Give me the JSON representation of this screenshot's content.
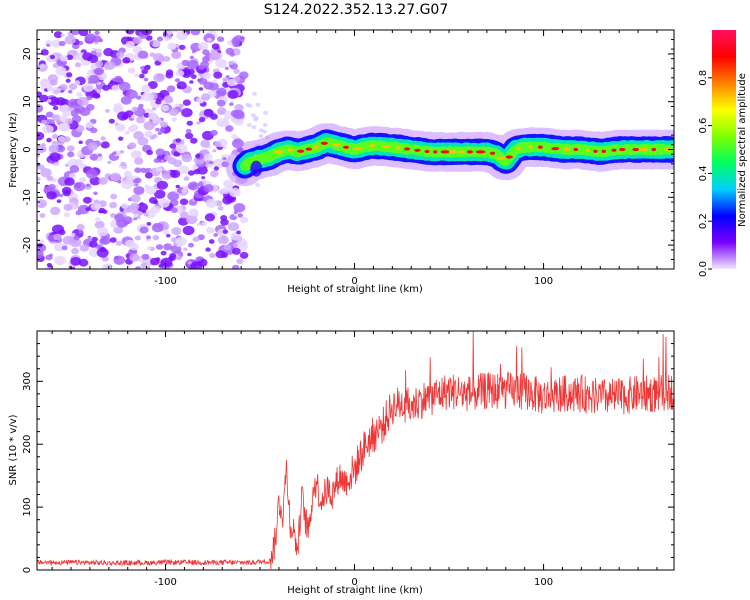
{
  "title": "S124.2022.352.13.27.G07",
  "chart_data": [
    {
      "type": "heatmap",
      "xlabel": "Height of straight line (km)",
      "ylabel": "Frequency (Hz)",
      "xlim": [
        -168,
        169
      ],
      "ylim": [
        -25,
        25
      ],
      "xticks": [
        -100,
        0,
        100
      ],
      "yticks": [
        -20,
        -10,
        0,
        10,
        20
      ],
      "colorbar": {
        "label": "Normalized spectral amplitude",
        "range": [
          0,
          1
        ],
        "ticks": [
          0.0,
          0.2,
          0.4,
          0.6,
          0.8
        ],
        "colormap": [
          "#f0e8ff",
          "#7a00ff",
          "#0000ff",
          "#00d0ff",
          "#00ff60",
          "#80ff00",
          "#ffff00",
          "#ff8000",
          "#ff0000",
          "#ff1060"
        ]
      },
      "noise_region": {
        "x": [
          -168,
          -58
        ],
        "level": 0.1
      },
      "signal_ridge": {
        "x": [
          -58,
          -55,
          -50,
          -45,
          -40,
          -35,
          -30,
          -25,
          -20,
          -15,
          -10,
          -5,
          0,
          5,
          10,
          20,
          30,
          40,
          50,
          60,
          70,
          75,
          80,
          85,
          90,
          100,
          110,
          120,
          130,
          140,
          150,
          160,
          169
        ],
        "y": [
          -3.5,
          -2.5,
          -2,
          -1.5,
          -0.5,
          0,
          -0.5,
          0,
          0.5,
          1.5,
          1,
          0.5,
          0,
          0.5,
          0.8,
          0.5,
          0,
          -0.5,
          -0.5,
          -0.5,
          -0.5,
          -1,
          -2.5,
          0,
          0.5,
          0.5,
          0,
          0,
          -0.5,
          0,
          0,
          0,
          0
        ]
      }
    },
    {
      "type": "line",
      "xlabel": "Height of straight line (km)",
      "ylabel": "SNR (10 * v/v)",
      "xlim": [
        -168,
        169
      ],
      "ylim": [
        0,
        380
      ],
      "xticks": [
        -100,
        0,
        100
      ],
      "yticks": [
        0,
        100,
        200,
        300
      ],
      "color": "#ee2a2a",
      "series": [
        {
          "x": [
            -168,
            -150,
            -125,
            -100,
            -75,
            -55,
            -45,
            -42,
            -40,
            -38,
            -36,
            -34,
            -32,
            -30,
            -28,
            -26,
            -24,
            -22,
            -20,
            -18,
            -16,
            -14,
            -12,
            -10,
            -8,
            -5,
            -2,
            0,
            3,
            6,
            10,
            15,
            20,
            25,
            30,
            35,
            40,
            50,
            60,
            70,
            80,
            90,
            100,
            110,
            120,
            130,
            140,
            150,
            160,
            169
          ],
          "y": [
            12,
            12,
            11,
            12,
            12,
            12,
            14,
            45,
            110,
            90,
            160,
            75,
            60,
            30,
            120,
            80,
            60,
            130,
            140,
            110,
            120,
            130,
            120,
            135,
            150,
            140,
            150,
            160,
            180,
            200,
            215,
            230,
            260,
            265,
            260,
            270,
            275,
            285,
            280,
            285,
            285,
            285,
            275,
            280,
            280,
            275,
            275,
            280,
            280,
            285
          ]
        }
      ]
    }
  ]
}
